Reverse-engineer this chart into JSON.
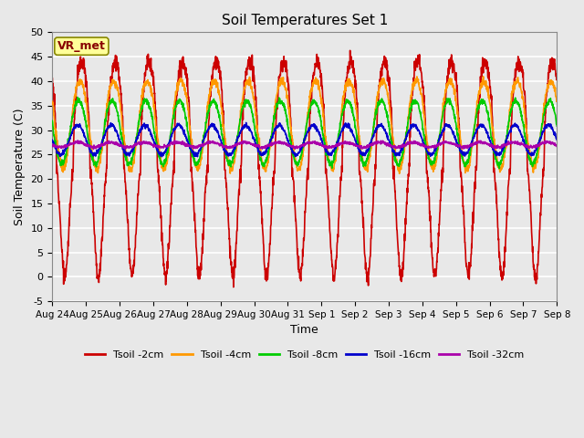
{
  "title": "Soil Temperatures Set 1",
  "xlabel": "Time",
  "ylabel": "Soil Temperature (C)",
  "ylim": [
    -5,
    50
  ],
  "background_color": "#e8e8e8",
  "plot_bg_color": "#e8e8e8",
  "grid_color": "white",
  "annotation_text": "VR_met",
  "annotation_box_color": "#ffff99",
  "annotation_text_color": "#880000",
  "x_tick_labels": [
    "Aug 24",
    "Aug 25",
    "Aug 26",
    "Aug 27",
    "Aug 28",
    "Aug 29",
    "Aug 30",
    "Aug 31",
    "Sep 1",
    "Sep 2",
    "Sep 3",
    "Sep 4",
    "Sep 5",
    "Sep 6",
    "Sep 7",
    "Sep 8"
  ],
  "series_colors": [
    "#cc0000",
    "#ff9900",
    "#00cc00",
    "#0000cc",
    "#aa00aa"
  ],
  "series_names": [
    "Tsoil -2cm",
    "Tsoil -4cm",
    "Tsoil -8cm",
    "Tsoil -16cm",
    "Tsoil -32cm"
  ],
  "n_days": 15,
  "points_per_day": 144
}
